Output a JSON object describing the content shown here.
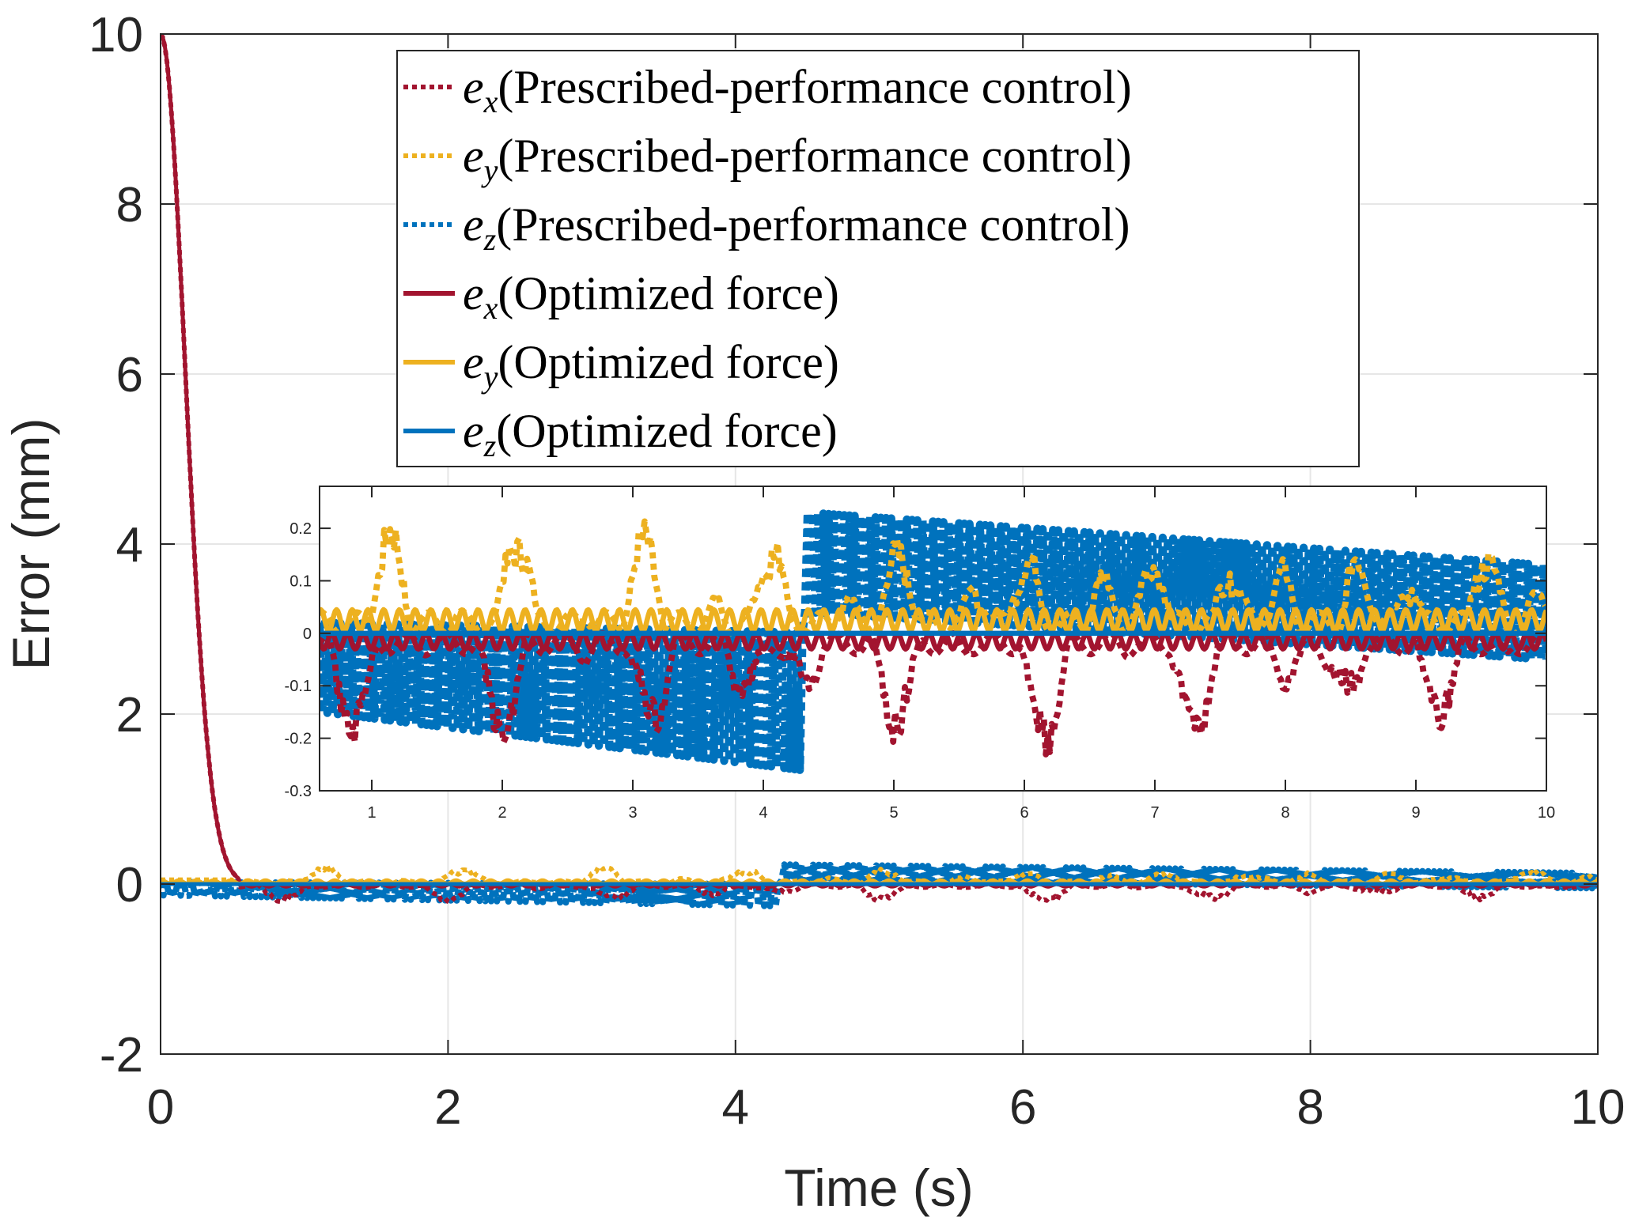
{
  "chart_data": [
    {
      "id": "main",
      "type": "line",
      "title": "",
      "xlabel": "Time (s)",
      "ylabel": "Error (mm)",
      "xlim": [
        0,
        10
      ],
      "ylim": [
        -2,
        10
      ],
      "xticks": [
        0,
        2,
        4,
        6,
        8,
        10
      ],
      "xtick_labels": [
        "0",
        "2",
        "4",
        "6",
        "8",
        "10"
      ],
      "yticks": [
        -2,
        0,
        2,
        4,
        6,
        8,
        10
      ],
      "ytick_labels": [
        "-2",
        "0",
        "2",
        "4",
        "6",
        "8",
        "10"
      ],
      "grid": true,
      "legend_position": "top-center",
      "series": [
        {
          "key": "ppc_x",
          "name_sym": "e",
          "name_sub": "x",
          "name_rest": "(Prescribed-performance control)",
          "style": "dotted",
          "color": "#A2142F",
          "description": "Starts at 10, decays to ~0 by t≈0.5 s, then oscillates between about -0.2 and +0.02",
          "x": [
            0,
            0.1,
            0.2,
            0.3,
            0.4,
            0.5,
            1,
            2,
            3,
            4,
            5,
            6,
            7,
            8,
            9,
            10
          ],
          "y": [
            10,
            8.6,
            6.0,
            3.2,
            1.2,
            0.1,
            -0.08,
            -0.1,
            -0.12,
            -0.1,
            -0.15,
            -0.12,
            -0.12,
            -0.1,
            -0.15,
            -0.12
          ]
        },
        {
          "key": "ppc_y",
          "name_sym": "e",
          "name_sub": "y",
          "name_rest": "(Prescribed-performance control)",
          "style": "dotted",
          "color": "#EDB120",
          "description": "Positive spikes up to ~0.22, mostly 0.02–0.2",
          "x": [
            0.6,
            1,
            1.2,
            1.5,
            2,
            3,
            4,
            5,
            6,
            7,
            8,
            9,
            9.8,
            10
          ],
          "y": [
            0.09,
            0.2,
            0.1,
            0.22,
            0.12,
            0.15,
            0.1,
            0.1,
            0.08,
            0.06,
            0.2,
            0.12,
            0.2,
            0.12
          ]
        },
        {
          "key": "ppc_z",
          "name_sym": "e",
          "name_sub": "z",
          "name_rest": "(Prescribed-performance control)",
          "style": "dotted",
          "color": "#0072BD",
          "description": "Dense band: from 0 to about -0.15/-0.28 before t≈4.3 s, then jumps to band from ~0.03 to 0.23 decreasing to ~0 to 0.13 at t=10",
          "band_upper_x": [
            0.6,
            4.3,
            4.35,
            10
          ],
          "band_upper_y": [
            0.02,
            0.0,
            0.23,
            0.13
          ],
          "band_lower_x": [
            0.6,
            4.3,
            4.35,
            10
          ],
          "band_lower_y": [
            -0.15,
            -0.25,
            0.04,
            -0.05
          ]
        },
        {
          "key": "opt_x",
          "name_sym": "e",
          "name_sub": "x",
          "name_rest": "(Optimized force)",
          "style": "solid",
          "color": "#A2142F",
          "description": "Starts at 10, decays to 0 by t≈0.5 s, small oscillation 0 to -0.03",
          "x": [
            0,
            0.1,
            0.2,
            0.3,
            0.4,
            0.5,
            1,
            10
          ],
          "y": [
            10,
            8.6,
            6.0,
            3.2,
            1.2,
            0.05,
            -0.02,
            -0.02
          ]
        },
        {
          "key": "opt_y",
          "name_sym": "e",
          "name_sub": "y",
          "name_rest": "(Optimized force)",
          "style": "solid",
          "color": "#EDB120",
          "description": "Small oscillation between 0 and ~0.05",
          "x": [
            0,
            10
          ],
          "y": [
            0.025,
            0.025
          ]
        },
        {
          "key": "opt_z",
          "name_sym": "e",
          "name_sub": "z",
          "name_rest": "(Optimized force)",
          "style": "solid",
          "color": "#0072BD",
          "description": "Essentially flat at 0",
          "x": [
            0,
            10
          ],
          "y": [
            0,
            0
          ]
        }
      ]
    },
    {
      "id": "inset",
      "type": "line",
      "title": "",
      "xlabel": "",
      "ylabel": "",
      "xlim": [
        0.6,
        10
      ],
      "ylim": [
        -0.3,
        0.28
      ],
      "xticks": [
        1,
        2,
        3,
        4,
        5,
        6,
        7,
        8,
        9,
        10
      ],
      "xtick_labels": [
        "1",
        "2",
        "3",
        "4",
        "5",
        "6",
        "7",
        "8",
        "9",
        "10"
      ],
      "yticks": [
        -0.3,
        -0.2,
        -0.1,
        0,
        0.1,
        0.2
      ],
      "ytick_labels": [
        "-0.3",
        "-0.2",
        "-0.1",
        "0",
        "0.1",
        "0.2"
      ],
      "grid": false
    }
  ]
}
